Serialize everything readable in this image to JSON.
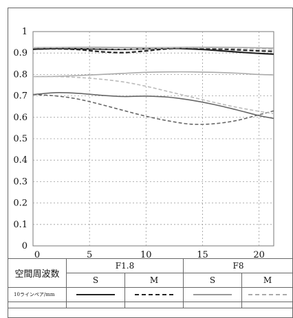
{
  "chart_data": {
    "type": "line",
    "xlim": [
      0,
      21.3
    ],
    "ylim": [
      0,
      1.0
    ],
    "x_ticks": [
      "0",
      "5",
      "10",
      "15",
      "20"
    ],
    "y_ticks": [
      "0",
      "0.1",
      "0.2",
      "0.3",
      "0.4",
      "0.5",
      "0.6",
      "0.7",
      "0.8",
      "0.9",
      "1"
    ],
    "grid": true,
    "series": [
      {
        "lens": "F1.8",
        "freq": "S",
        "color": "#222222",
        "dash": "",
        "width": 2.2,
        "x": [
          0,
          2,
          4,
          6,
          8,
          10,
          12,
          14,
          16,
          18,
          20,
          21.3
        ],
        "y": [
          0.918,
          0.921,
          0.92,
          0.918,
          0.917,
          0.92,
          0.922,
          0.919,
          0.913,
          0.905,
          0.898,
          0.895
        ]
      },
      {
        "lens": "F1.8",
        "freq": "M",
        "color": "#222222",
        "dash": "6,3",
        "width": 2.2,
        "x": [
          0,
          2,
          4,
          6,
          8,
          10,
          12,
          14,
          16,
          18,
          20,
          21.3
        ],
        "y": [
          0.918,
          0.92,
          0.916,
          0.906,
          0.902,
          0.91,
          0.92,
          0.922,
          0.92,
          0.915,
          0.91,
          0.908
        ]
      },
      {
        "lens": "F1.8",
        "freq": "S",
        "color": "#666666",
        "dash": "",
        "width": 1.6,
        "x": [
          0,
          2,
          4,
          6,
          8,
          10,
          12,
          14,
          16,
          18,
          20,
          21.3
        ],
        "y": [
          0.706,
          0.715,
          0.712,
          0.703,
          0.697,
          0.699,
          0.694,
          0.68,
          0.66,
          0.635,
          0.608,
          0.595
        ]
      },
      {
        "lens": "F1.8",
        "freq": "M",
        "color": "#666666",
        "dash": "5,3",
        "width": 1.6,
        "x": [
          0,
          2,
          4,
          6,
          8,
          10,
          12,
          14,
          16,
          18,
          20,
          21.3
        ],
        "y": [
          0.706,
          0.7,
          0.685,
          0.66,
          0.632,
          0.605,
          0.583,
          0.568,
          0.57,
          0.585,
          0.612,
          0.63
        ]
      },
      {
        "lens": "F8",
        "freq": "S",
        "color": "#aaaaaa",
        "dash": "",
        "width": 1.8,
        "x": [
          0,
          2,
          4,
          6,
          8,
          10,
          12,
          14,
          16,
          18,
          20,
          21.3
        ],
        "y": [
          0.925,
          0.926,
          0.927,
          0.927,
          0.926,
          0.925,
          0.926,
          0.927,
          0.927,
          0.926,
          0.924,
          0.923
        ]
      },
      {
        "lens": "F8",
        "freq": "M",
        "color": "#bbbbbb",
        "dash": "6,3",
        "width": 1.8,
        "x": [
          0,
          2,
          4,
          6,
          8,
          10,
          12,
          14,
          16,
          18,
          20,
          21.3
        ],
        "y": [
          0.924,
          0.925,
          0.924,
          0.921,
          0.919,
          0.921,
          0.924,
          0.925,
          0.924,
          0.922,
          0.92,
          0.918
        ]
      },
      {
        "lens": "F8",
        "freq": "S",
        "color": "#aaaaaa",
        "dash": "",
        "width": 1.6,
        "x": [
          0,
          2,
          4,
          6,
          8,
          10,
          12,
          14,
          16,
          18,
          20,
          21.3
        ],
        "y": [
          0.79,
          0.791,
          0.795,
          0.8,
          0.805,
          0.81,
          0.812,
          0.812,
          0.81,
          0.806,
          0.8,
          0.798
        ]
      },
      {
        "lens": "F8",
        "freq": "M",
        "color": "#bbbbbb",
        "dash": "5,3",
        "width": 1.6,
        "x": [
          0,
          2,
          4,
          6,
          8,
          10,
          12,
          14,
          16,
          18,
          20,
          21.3
        ],
        "y": [
          0.79,
          0.79,
          0.786,
          0.778,
          0.765,
          0.745,
          0.72,
          0.695,
          0.67,
          0.647,
          0.628,
          0.617
        ]
      }
    ]
  },
  "legend": {
    "row_header": "空間周波数",
    "lenses": [
      "F1.8",
      "F8"
    ],
    "freqs": [
      "S",
      "M",
      "S",
      "M"
    ],
    "row_label": "10ラインペア/mm"
  }
}
